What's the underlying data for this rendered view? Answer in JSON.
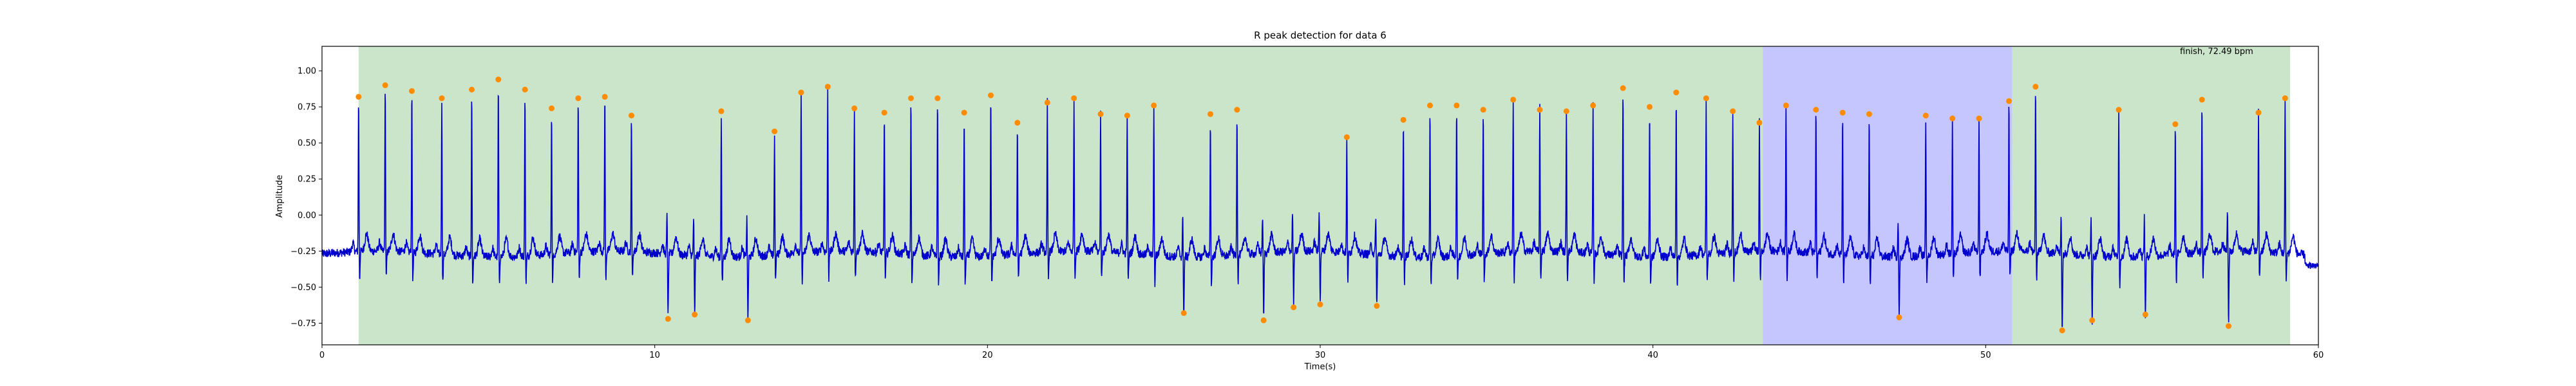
{
  "chart_data": {
    "type": "line",
    "title": "R peak detection for data 6",
    "xlabel": "Time(s)",
    "ylabel": "Amplitude",
    "xlim": [
      0,
      60
    ],
    "ylim": [
      -0.9,
      1.17
    ],
    "xticks": [
      0,
      10,
      20,
      30,
      40,
      50,
      60
    ],
    "yticks": [
      -0.75,
      -0.5,
      -0.25,
      0.0,
      0.25,
      0.5,
      0.75,
      1.0
    ],
    "ytick_labels": [
      "−0.75",
      "−0.50",
      "−0.25",
      "0.00",
      "0.25",
      "0.50",
      "0.75",
      "1.00"
    ],
    "grid": false,
    "annotation": "finish, 72.49 bpm",
    "colors": {
      "signal": "#0000cc",
      "peaks": "#ff8c00",
      "region_green": "#b9dcb9",
      "region_blue": "#b3b3ff"
    },
    "regions": [
      {
        "x0": 1.1,
        "x1": 43.3,
        "color": "green"
      },
      {
        "x0": 43.3,
        "x1": 50.8,
        "color": "blue"
      },
      {
        "x0": 50.8,
        "x1": 59.15,
        "color": "green"
      }
    ],
    "series": [
      {
        "type": "line",
        "values_note": "ECG-like signal rendered procedurally from the detected peak times"
      },
      {
        "type": "scatter",
        "points": [
          [
            1.1,
            0.82
          ],
          [
            1.9,
            0.9
          ],
          [
            2.7,
            0.86
          ],
          [
            3.6,
            0.81
          ],
          [
            4.5,
            0.87
          ],
          [
            5.3,
            0.94
          ],
          [
            6.1,
            0.87
          ],
          [
            6.9,
            0.74
          ],
          [
            7.7,
            0.81
          ],
          [
            8.5,
            0.82
          ],
          [
            9.3,
            0.69
          ],
          [
            10.4,
            -0.72
          ],
          [
            11.2,
            -0.69
          ],
          [
            12.0,
            0.72
          ],
          [
            12.8,
            -0.73
          ],
          [
            13.6,
            0.58
          ],
          [
            14.4,
            0.85
          ],
          [
            15.2,
            0.89
          ],
          [
            16.0,
            0.74
          ],
          [
            16.9,
            0.71
          ],
          [
            17.7,
            0.81
          ],
          [
            18.5,
            0.81
          ],
          [
            19.3,
            0.71
          ],
          [
            20.1,
            0.83
          ],
          [
            20.9,
            0.64
          ],
          [
            21.8,
            0.78
          ],
          [
            22.6,
            0.81
          ],
          [
            23.4,
            0.7
          ],
          [
            24.2,
            0.69
          ],
          [
            25.0,
            0.76
          ],
          [
            25.9,
            -0.68
          ],
          [
            26.7,
            0.7
          ],
          [
            27.5,
            0.73
          ],
          [
            28.3,
            -0.73
          ],
          [
            29.2,
            -0.64
          ],
          [
            30.0,
            -0.62
          ],
          [
            30.8,
            0.54
          ],
          [
            31.7,
            -0.63
          ],
          [
            32.5,
            0.66
          ],
          [
            33.3,
            0.76
          ],
          [
            34.1,
            0.76
          ],
          [
            34.9,
            0.73
          ],
          [
            35.8,
            0.8
          ],
          [
            36.6,
            0.73
          ],
          [
            37.4,
            0.72
          ],
          [
            38.2,
            0.76
          ],
          [
            39.1,
            0.88
          ],
          [
            39.9,
            0.75
          ],
          [
            40.7,
            0.85
          ],
          [
            41.6,
            0.81
          ],
          [
            42.4,
            0.72
          ],
          [
            43.2,
            0.64
          ],
          [
            44.0,
            0.76
          ],
          [
            44.9,
            0.73
          ],
          [
            45.7,
            0.71
          ],
          [
            46.5,
            0.7
          ],
          [
            47.4,
            -0.71
          ],
          [
            48.2,
            0.69
          ],
          [
            49.0,
            0.67
          ],
          [
            49.8,
            0.67
          ],
          [
            50.7,
            0.79
          ],
          [
            51.5,
            0.89
          ],
          [
            52.3,
            -0.8
          ],
          [
            53.2,
            -0.73
          ],
          [
            54.0,
            0.73
          ],
          [
            54.8,
            -0.69
          ],
          [
            55.7,
            0.63
          ],
          [
            56.5,
            0.8
          ],
          [
            57.3,
            -0.77
          ],
          [
            58.2,
            0.71
          ],
          [
            59.0,
            0.81
          ]
        ]
      }
    ]
  }
}
